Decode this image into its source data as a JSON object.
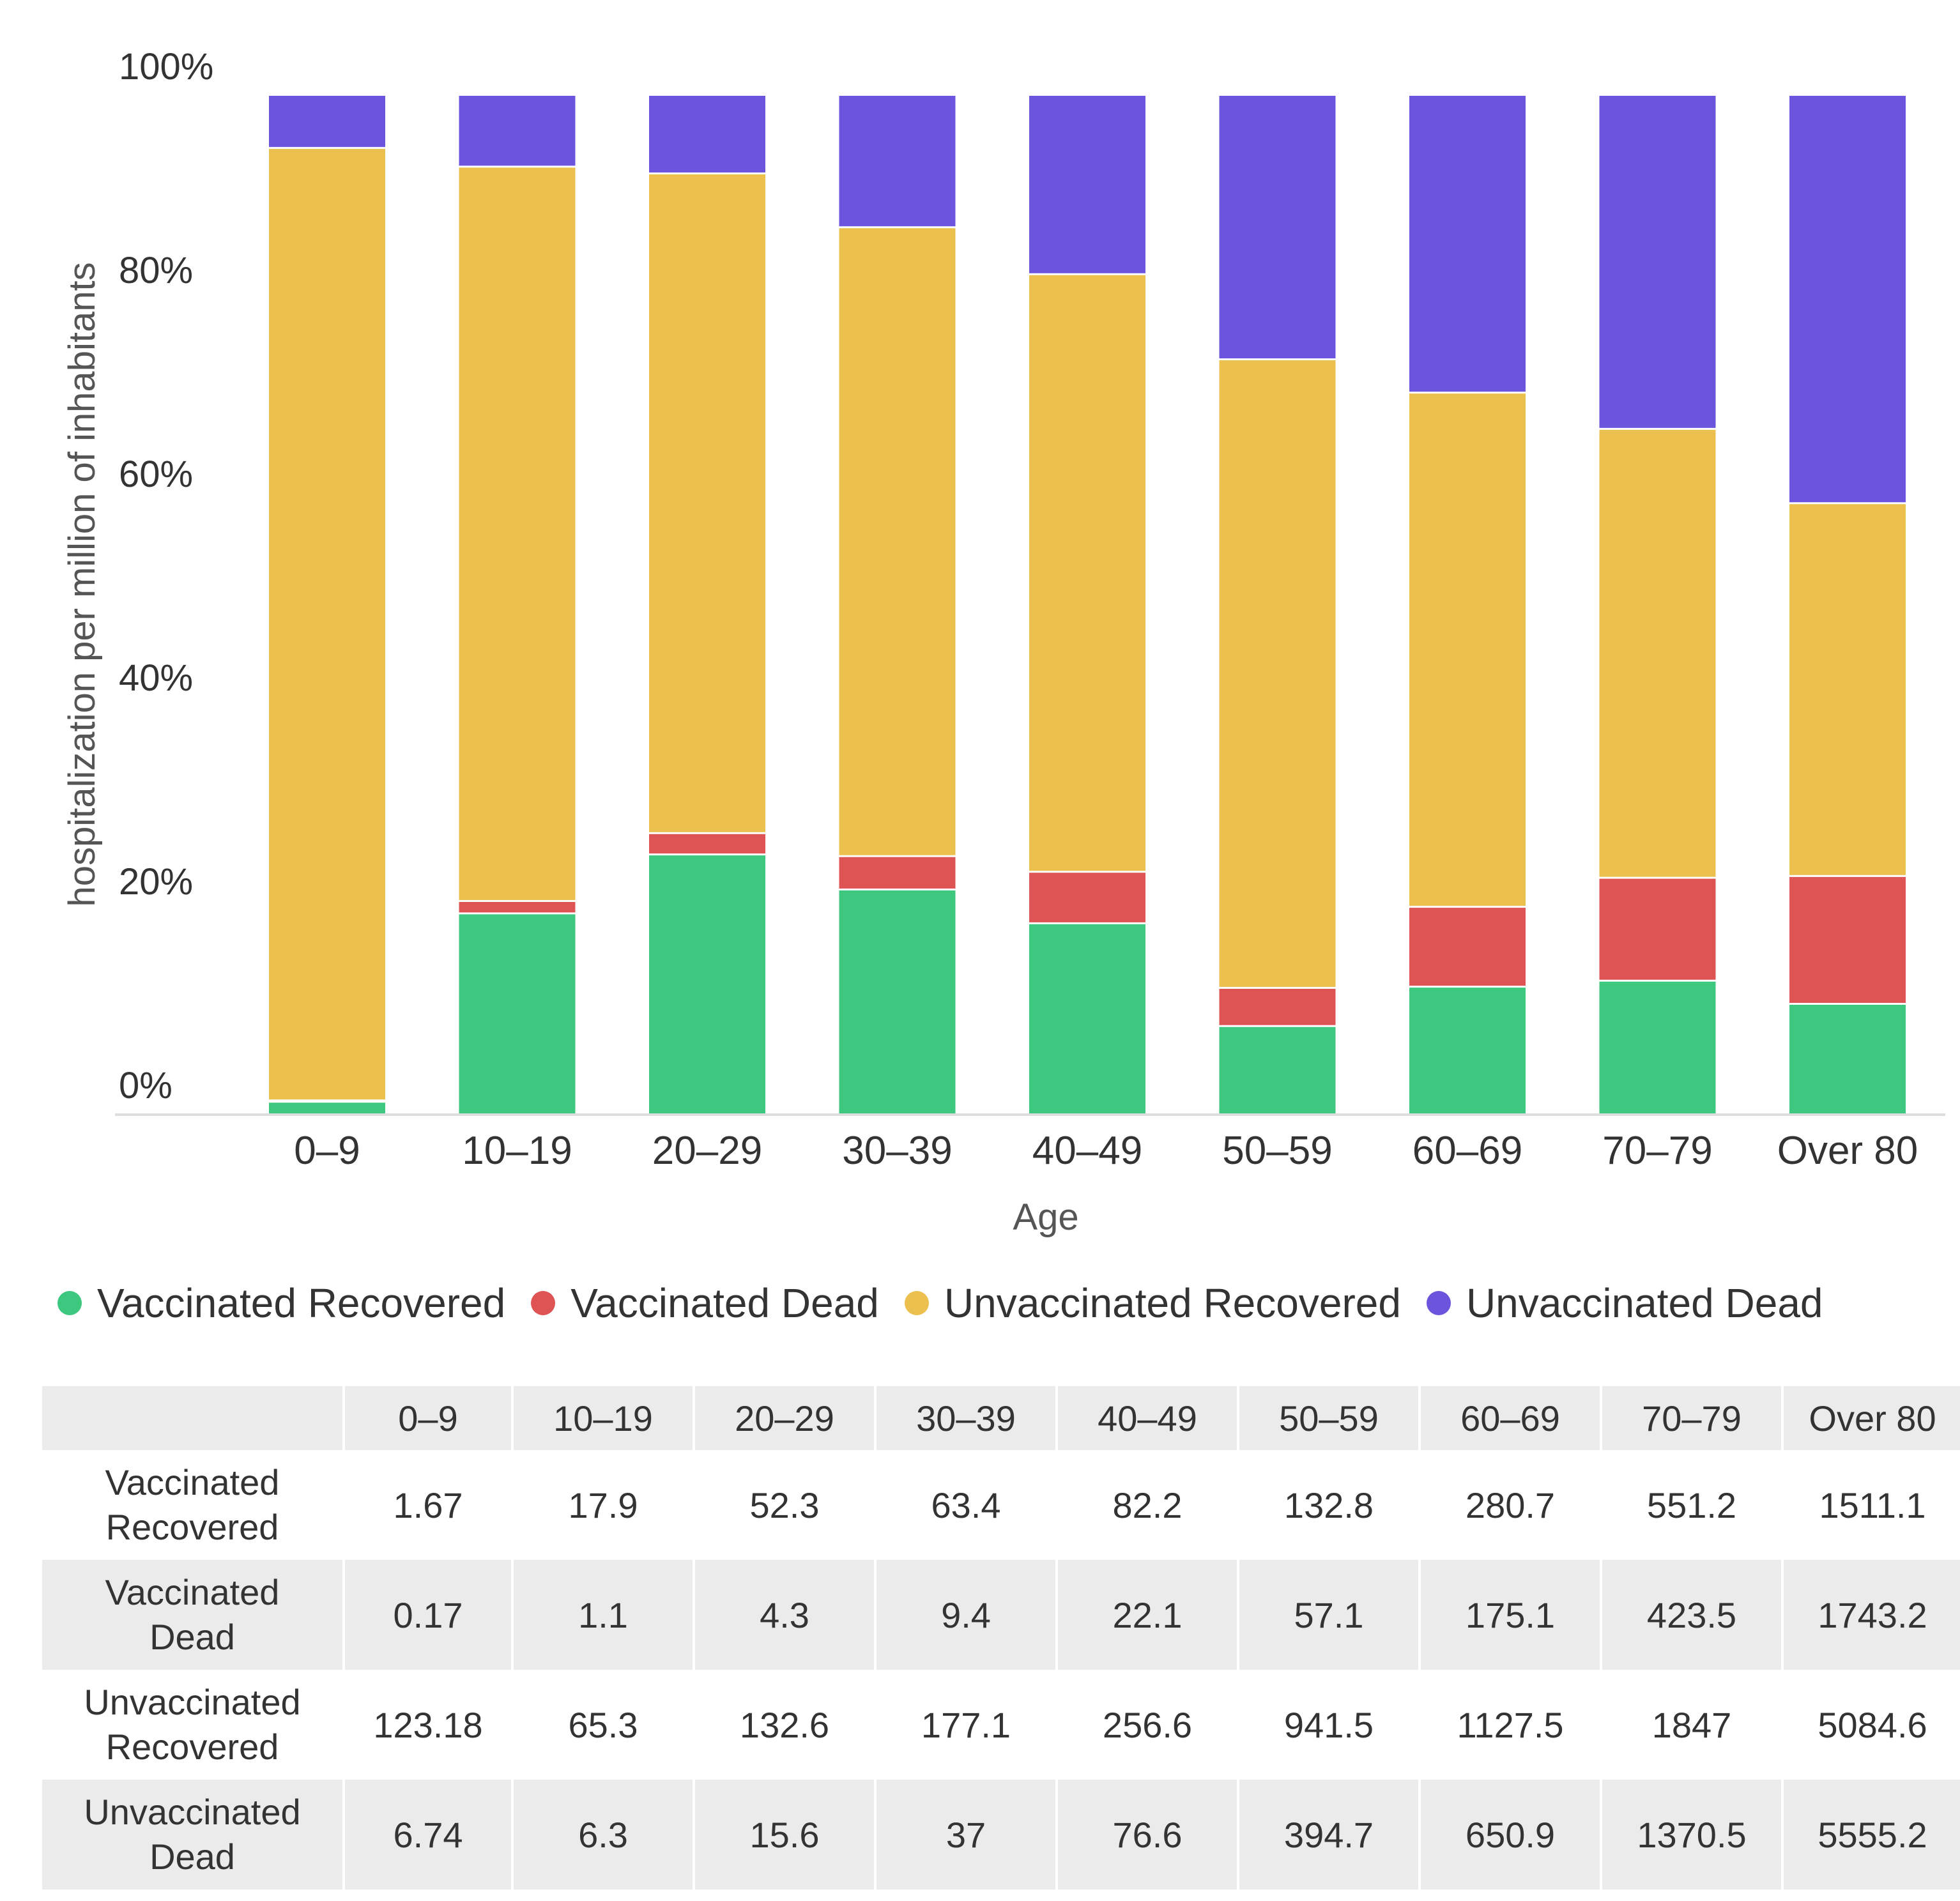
{
  "chart_data": {
    "type": "bar",
    "stacked": true,
    "normalized": true,
    "title": "",
    "xlabel": "Age",
    "ylabel": "hospitalization per million of inhabitants",
    "ylim": [
      0,
      100
    ],
    "yticks": [
      "0%",
      "20%",
      "40%",
      "60%",
      "80%",
      "100%"
    ],
    "categories": [
      "0–9",
      "10–19",
      "20–29",
      "30–39",
      "40–49",
      "50–59",
      "60–69",
      "70–79",
      "Over 80"
    ],
    "series": [
      {
        "name": "Vaccinated Recovered",
        "color": "#3ec77e",
        "values": [
          1.67,
          17.9,
          52.3,
          63.4,
          82.2,
          132.8,
          280.7,
          551.2,
          1511.1
        ]
      },
      {
        "name": "Vaccinated Dead",
        "color": "#de5353",
        "values": [
          0.17,
          1.1,
          4.3,
          9.4,
          22.1,
          57.1,
          175.1,
          423.5,
          1743.2
        ]
      },
      {
        "name": "Unvaccinated Recovered",
        "color": "#ecc04f",
        "values": [
          123.18,
          65.3,
          132.6,
          177.1,
          256.6,
          941.5,
          1127.5,
          1847,
          5084.6
        ]
      },
      {
        "name": "Unvaccinated Dead",
        "color": "#6c55dc",
        "values": [
          6.74,
          6.3,
          15.6,
          37,
          76.6,
          394.7,
          650.9,
          1370.5,
          5555.2
        ]
      }
    ],
    "legend_position": "bottom"
  },
  "table": {
    "header": [
      "",
      "0–9",
      "10–19",
      "20–29",
      "30–39",
      "40–49",
      "50–59",
      "60–69",
      "70–79",
      "Over 80"
    ],
    "rows": [
      {
        "label_line1": "Vaccinated",
        "label_line2": "Recovered",
        "cells": [
          "1.67",
          "17.9",
          "52.3",
          "63.4",
          "82.2",
          "132.8",
          "280.7",
          "551.2",
          "1511.1"
        ]
      },
      {
        "label_line1": "Vaccinated",
        "label_line2": "Dead",
        "cells": [
          "0.17",
          "1.1",
          "4.3",
          "9.4",
          "22.1",
          "57.1",
          "175.1",
          "423.5",
          "1743.2"
        ]
      },
      {
        "label_line1": "Unvaccinated",
        "label_line2": "Recovered",
        "cells": [
          "123.18",
          "65.3",
          "132.6",
          "177.1",
          "256.6",
          "941.5",
          "1127.5",
          "1847",
          "5084.6"
        ]
      },
      {
        "label_line1": "Unvaccinated",
        "label_line2": "Dead",
        "cells": [
          "6.74",
          "6.3",
          "15.6",
          "37",
          "76.6",
          "394.7",
          "650.9",
          "1370.5",
          "5555.2"
        ]
      }
    ]
  }
}
